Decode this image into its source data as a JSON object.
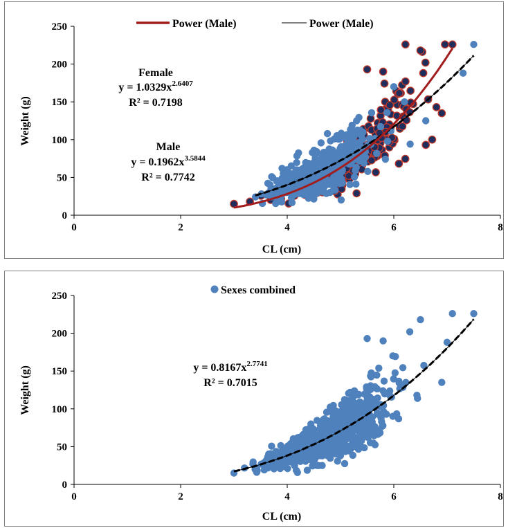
{
  "chart_data": [
    {
      "type": "scatter",
      "title": "",
      "xlabel": "CL (cm)",
      "ylabel": "Weight (g)",
      "xlim": [
        0,
        8
      ],
      "ylim": [
        0,
        250
      ],
      "xticks": [
        "0",
        "2",
        "4",
        "6",
        "8"
      ],
      "yticks": [
        "0",
        "50",
        "100",
        "150",
        "200",
        "250"
      ],
      "grid": false,
      "legend_position": "top",
      "legend": [
        {
          "name": "Power (Male)",
          "style": "thick-dark-red-line",
          "color": "#a21d1d"
        },
        {
          "name": "Power (Male)",
          "style": "thin-black-line",
          "color": "#000000"
        }
      ],
      "annotations": {
        "female_title": "Female",
        "female_eq_base": "y = 1.0329x",
        "female_eq_exp": "2.6407",
        "female_r2": "R² = 0.7198",
        "male_title": "Male",
        "male_eq_base": "y = 0.1962x",
        "male_eq_exp": "3.5844",
        "male_r2": "R² = 0.7742"
      },
      "series": [
        {
          "name": "Female",
          "marker_color": "#1f2d5c",
          "edge_color": "#c0392b",
          "points_extent": {
            "x": [
              3.0,
              7.1
            ],
            "y": [
              15,
              226
            ]
          }
        },
        {
          "name": "Male",
          "marker_color": "#4f81bd",
          "points_extent": {
            "x": [
              3.4,
              7.5
            ],
            "y": [
              18,
              226
            ]
          }
        }
      ],
      "trendlines": [
        {
          "for": "Female",
          "a": 1.0329,
          "b": 2.6407,
          "x_range": [
            3.4,
            7.5
          ],
          "style": "dashed-black",
          "color": "#000000"
        },
        {
          "for": "Male",
          "a": 0.1962,
          "b": 3.5844,
          "x_range": [
            3.0,
            7.1
          ],
          "style": "solid-dark-red",
          "color": "#a21d1d"
        }
      ]
    },
    {
      "type": "scatter",
      "title": "",
      "xlabel": "CL (cm)",
      "ylabel": "Weight (g)",
      "xlim": [
        0,
        8
      ],
      "ylim": [
        0,
        250
      ],
      "xticks": [
        "0",
        "2",
        "4",
        "6",
        "8"
      ],
      "yticks": [
        "0",
        "50",
        "100",
        "150",
        "200",
        "250"
      ],
      "grid": false,
      "legend_position": "top",
      "legend": [
        {
          "name": "Sexes combined",
          "style": "blue-marker",
          "color": "#4f81bd"
        }
      ],
      "annotations": {
        "eq_base": "y = 0.8167x",
        "eq_exp": "2.7741",
        "r2": "R² = 0.7015"
      },
      "series": [
        {
          "name": "Sexes combined",
          "marker_color": "#4f81bd",
          "points_extent": {
            "x": [
              3.0,
              7.5
            ],
            "y": [
              15,
              226
            ]
          }
        }
      ],
      "trendlines": [
        {
          "for": "Sexes combined",
          "a": 0.8167,
          "b": 2.7741,
          "x_range": [
            3.0,
            7.5
          ],
          "style": "dashed-black",
          "color": "#000000"
        }
      ]
    }
  ]
}
